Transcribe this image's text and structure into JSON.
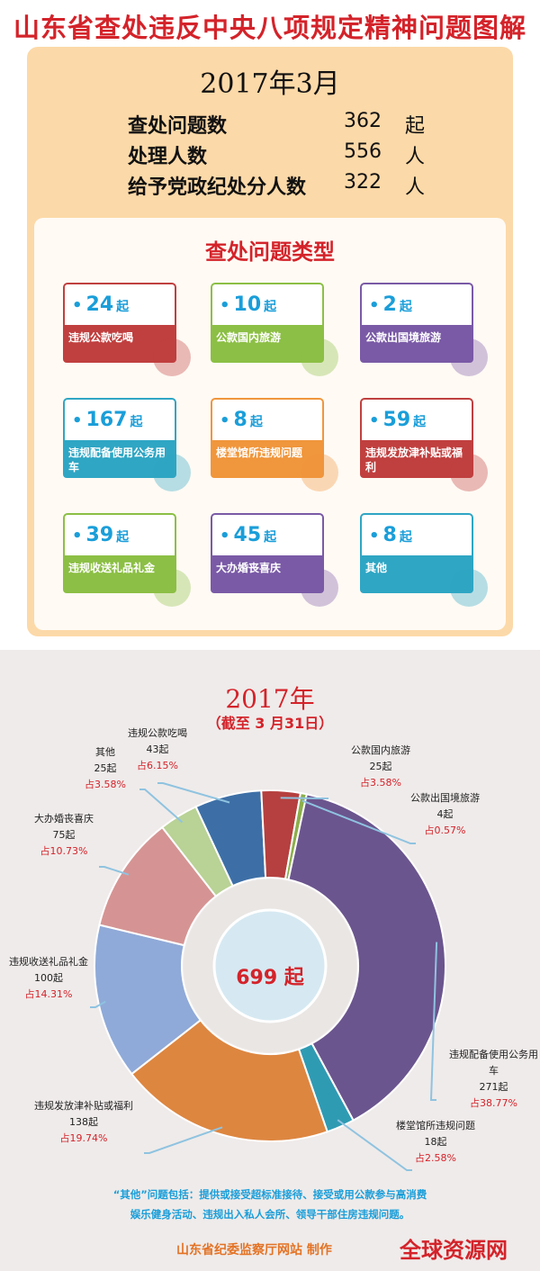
{
  "title": "山东省查处违反中央八项规定精神问题图解",
  "month_section": {
    "month": "2017年3月",
    "stats": [
      {
        "label": "查处问题数",
        "value": "362",
        "unit": "起"
      },
      {
        "label": "处理人数",
        "value": "556",
        "unit": "人"
      },
      {
        "label": "给予党政纪处分人数",
        "value": "322",
        "unit": "人"
      }
    ],
    "types_title": "查处问题类型",
    "cards": [
      {
        "value": "24",
        "unit": "起",
        "label": "违规公款吃喝",
        "color": "#c0403f"
      },
      {
        "value": "10",
        "unit": "起",
        "label": "公款国内旅游",
        "color": "#8cbf45"
      },
      {
        "value": "2",
        "unit": "起",
        "label": "公款出国境旅游",
        "color": "#7a5aa6"
      },
      {
        "value": "167",
        "unit": "起",
        "label": "违规配备使用公务用车",
        "color": "#2fa6c4"
      },
      {
        "value": "8",
        "unit": "起",
        "label": "楼堂馆所违规问题",
        "color": "#f0963c"
      },
      {
        "value": "59",
        "unit": "起",
        "label": "违规发放津补贴或福利",
        "color": "#c0403f"
      },
      {
        "value": "39",
        "unit": "起",
        "label": "违规收送礼品礼金",
        "color": "#8cbf45"
      },
      {
        "value": "45",
        "unit": "起",
        "label": "大办婚丧喜庆",
        "color": "#7a5aa6"
      },
      {
        "value": "8",
        "unit": "起",
        "label": "其他",
        "color": "#2fa6c4"
      }
    ]
  },
  "year_section": {
    "year": "2017年",
    "as_of": "（截至 3 月31日）",
    "center_total": "699 起",
    "note_line1": "“其他”问题包括：提供或接受超标准接待、接受或用公款参与高消费",
    "note_line2": "娱乐健身活动、违规出入私人会所、领导干部住房违规问题。",
    "credit": "山东省纪委监察厅网站  制作",
    "watermark": "全球资源网"
  },
  "chart_data": {
    "type": "pie",
    "total": 699,
    "slices": [
      {
        "name": "违规公款吃喝",
        "count": "43起",
        "pct": "占6.15%",
        "value": 43,
        "color": "#3d6fa6"
      },
      {
        "name": "公款国内旅游",
        "count": "25起",
        "pct": "占3.58%",
        "value": 25,
        "color": "#b5403f"
      },
      {
        "name": "公款出国境旅游",
        "count": "4起",
        "pct": "占0.57%",
        "value": 4,
        "color": "#8cae4a"
      },
      {
        "name": "违规配备使用公务用车",
        "count": "271起",
        "pct": "占38.77%",
        "value": 271,
        "color": "#6b558e"
      },
      {
        "name": "楼堂馆所违规问题",
        "count": "18起",
        "pct": "占2.58%",
        "value": 18,
        "color": "#2f9bb3"
      },
      {
        "name": "违规发放津补贴或福利",
        "count": "138起",
        "pct": "占19.74%",
        "value": 138,
        "color": "#dd8640"
      },
      {
        "name": "违规收送礼品礼金",
        "count": "100起",
        "pct": "占14.31%",
        "value": 100,
        "color": "#8faad8"
      },
      {
        "name": "大办婚丧喜庆",
        "count": "75起",
        "pct": "占10.73%",
        "value": 75,
        "color": "#d59493"
      },
      {
        "name": "其他",
        "count": "25起",
        "pct": "占3.58%",
        "value": 25,
        "color": "#b9d295"
      }
    ]
  }
}
